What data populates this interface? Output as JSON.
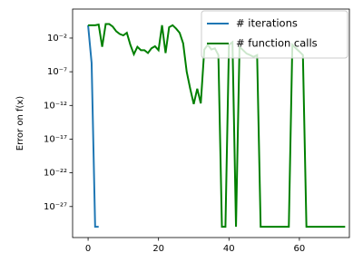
{
  "chart_data": {
    "type": "line",
    "y_label": "Error on f(x)",
    "log_y": true,
    "legend": "upper right",
    "xlim": [
      -4.4,
      74.2
    ],
    "xticks": [
      0,
      20,
      40,
      60
    ],
    "ylim": [
      2.5e-32,
      200
    ],
    "yticks": [
      {
        "value": 1e-27,
        "label": "10⁻²⁷"
      },
      {
        "value": 1e-22,
        "label": "10⁻²²"
      },
      {
        "value": 1e-17,
        "label": "10⁻¹⁷"
      },
      {
        "value": 1e-12,
        "label": "10⁻¹²"
      },
      {
        "value": 1e-07,
        "label": "10⁻⁷"
      },
      {
        "value": 0.01,
        "label": "10⁻²"
      }
    ],
    "series": [
      {
        "name": "# iterations",
        "color": "#1f77b4",
        "x": [
          0,
          1,
          2,
          3
        ],
        "values": [
          0.8,
          2e-06,
          1e-30,
          1e-30
        ]
      },
      {
        "name": "# function calls",
        "color": "#008000",
        "x": [
          0,
          1,
          2,
          3,
          4,
          5,
          6,
          7,
          8,
          9,
          10,
          11,
          12,
          13,
          14,
          15,
          16,
          17,
          18,
          19,
          20,
          21,
          22,
          23,
          24,
          25,
          26,
          27,
          28,
          29,
          30,
          31,
          32,
          33,
          34,
          35,
          36,
          37,
          38,
          39,
          40,
          41,
          42,
          43,
          44,
          45,
          46,
          47,
          48,
          49,
          50,
          51,
          52,
          53,
          54,
          55,
          56,
          57,
          58,
          59,
          60,
          61,
          62,
          63,
          64,
          65,
          66,
          67,
          68,
          69,
          70,
          71,
          72,
          73
        ],
        "values": [
          0.8,
          0.8,
          0.8,
          1,
          0.0005,
          1.2,
          1.2,
          0.5,
          0.1,
          0.04,
          0.025,
          0.06,
          0.001,
          4e-05,
          0.0005,
          0.00016,
          0.00016,
          6e-05,
          0.0003,
          0.0006,
          0.00016,
          0.8,
          6e-05,
          0.4,
          0.8,
          0.25,
          0.06,
          0.0016,
          1e-07,
          3e-10,
          1.6e-12,
          3e-10,
          2e-12,
          0.0002,
          0.001,
          0.0002,
          0.0003,
          3e-05,
          1e-30,
          1e-30,
          0.001,
          0.0025,
          1e-30,
          0.0005,
          0.00016,
          5e-05,
          3e-05,
          1.6e-05,
          3e-05,
          1e-30,
          1e-30,
          1e-30,
          1e-30,
          1e-30,
          1e-30,
          1e-30,
          1e-30,
          1e-30,
          0.001,
          0.0003,
          0.0001,
          3e-05,
          1e-30,
          1e-30,
          1e-30,
          1e-30,
          1e-30,
          1e-30,
          1e-30,
          1e-30,
          1e-30,
          1e-30,
          1e-30,
          1e-30
        ]
      }
    ]
  }
}
